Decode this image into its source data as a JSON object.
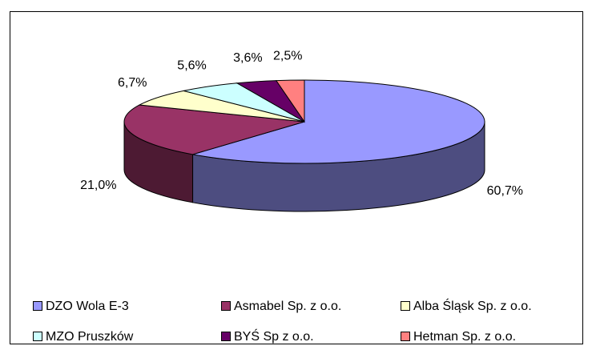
{
  "chart_data": {
    "type": "pie",
    "categories": [
      "DZO Wola E-3",
      "Asmabel Sp. z o.o.",
      "Alba Śląsk Sp. z o.o.",
      "MZO Pruszków",
      "BYŚ Sp z o.o.",
      "Hetman Sp. z o.o."
    ],
    "values": [
      60.7,
      21.0,
      6.7,
      5.6,
      3.6,
      2.5
    ],
    "value_labels": [
      "60,7%",
      "21,0%",
      "6,7%",
      "5,6%",
      "3,6%",
      "2,5%"
    ],
    "colors": [
      "#9999ff",
      "#993366",
      "#ffffcc",
      "#ccffff",
      "#660066",
      "#ff8080"
    ],
    "legend": "bottom"
  }
}
